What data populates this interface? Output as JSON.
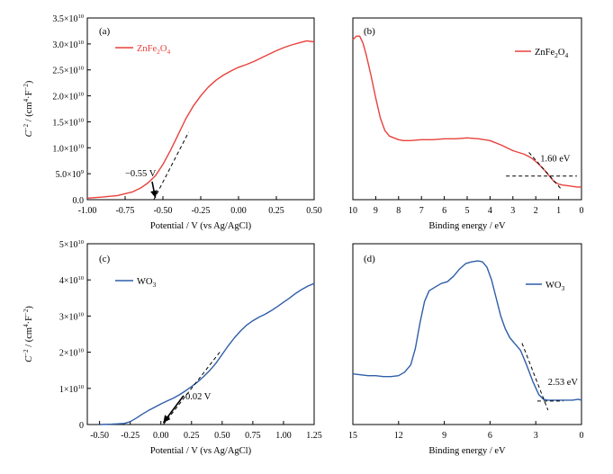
{
  "chart_data": [
    {
      "type": "line",
      "panel_label": "(a)",
      "xlabel": "Potential / V (vs Ag/AgCl)",
      "ylabel_base": "C",
      "ylabel_sup": "−2",
      "ylabel_rest": " / (cm",
      "ylabel_sup2": "4",
      "ylabel_rest2": "·F",
      "ylabel_sup3": "−2",
      "ylabel_end": ")",
      "xlim": [
        -1.0,
        0.5
      ],
      "ylim": [
        0,
        35000000000
      ],
      "xticks": [
        "-1.00",
        "-0.75",
        "-0.50",
        "-0.25",
        "0.00",
        "0.25",
        "0.50"
      ],
      "xtick_values": [
        -1.0,
        -0.75,
        -0.5,
        -0.25,
        0.0,
        0.25,
        0.5
      ],
      "yticks": [
        {
          "value": 0,
          "base": "0.0",
          "exp": ""
        },
        {
          "value": 5000000000,
          "base": "5.0×10",
          "exp": "9"
        },
        {
          "value": 10000000000,
          "base": "1.0×10",
          "exp": "10"
        },
        {
          "value": 15000000000,
          "base": "1.5×10",
          "exp": "10"
        },
        {
          "value": 20000000000,
          "base": "2.0×10",
          "exp": "10"
        },
        {
          "value": 25000000000,
          "base": "2.5×10",
          "exp": "10"
        },
        {
          "value": 30000000000,
          "base": "3.0×10",
          "exp": "10"
        },
        {
          "value": 35000000000,
          "base": "3.5×10",
          "exp": "10"
        }
      ],
      "series": [
        {
          "name": "ZnFe2O4",
          "legend_parts": [
            "ZnFe",
            "2",
            "O",
            "4"
          ],
          "color": "#e8413c",
          "x": [
            -1.0,
            -0.9,
            -0.8,
            -0.7,
            -0.65,
            -0.6,
            -0.55,
            -0.5,
            -0.45,
            -0.4,
            -0.35,
            -0.3,
            -0.25,
            -0.2,
            -0.15,
            -0.1,
            -0.05,
            0.0,
            0.05,
            0.1,
            0.15,
            0.2,
            0.25,
            0.3,
            0.35,
            0.4,
            0.45,
            0.5
          ],
          "y": [
            300000000,
            500000000,
            800000000,
            1500000000,
            2200000000,
            3200000000,
            4600000000,
            6800000000,
            9500000000,
            12500000000,
            15500000000,
            18000000000,
            20000000000,
            21700000000,
            23000000000,
            24000000000,
            24800000000,
            25500000000,
            26000000000,
            26600000000,
            27300000000,
            28000000000,
            28700000000,
            29300000000,
            29800000000,
            30200000000,
            30600000000,
            30400000000
          ]
        }
      ],
      "tangent": {
        "x": [
          -0.56,
          -0.33
        ],
        "y": [
          0,
          13000000000
        ]
      },
      "annotation": {
        "text": "−0.55 V",
        "x": -0.55,
        "y": 0,
        "label_x": -0.75,
        "label_y": 4500000000
      }
    },
    {
      "type": "line",
      "panel_label": "(b)",
      "xlabel": "Binding energy / eV",
      "xlim": [
        10,
        0
      ],
      "ylim": [
        0,
        1
      ],
      "xticks": [
        "10",
        "9",
        "8",
        "7",
        "6",
        "5",
        "4",
        "3",
        "2",
        "1",
        "0"
      ],
      "xtick_values": [
        10,
        9,
        8,
        7,
        6,
        5,
        4,
        3,
        2,
        1,
        0
      ],
      "series": [
        {
          "name": "ZnFe2O4",
          "legend_parts": [
            "ZnFe",
            "2",
            "O",
            "4"
          ],
          "color": "#e8413c",
          "x": [
            10.0,
            9.85,
            9.7,
            9.55,
            9.4,
            9.2,
            9.0,
            8.8,
            8.6,
            8.4,
            8.2,
            8.0,
            7.8,
            7.5,
            7.0,
            6.5,
            6.0,
            5.5,
            5.0,
            4.5,
            4.0,
            3.5,
            3.0,
            2.5,
            2.2,
            1.9,
            1.6,
            1.4,
            1.2,
            1.0,
            0.8,
            0.5,
            0.2,
            0.0
          ],
          "y": [
            0.88,
            0.9,
            0.9,
            0.86,
            0.79,
            0.68,
            0.56,
            0.45,
            0.38,
            0.35,
            0.34,
            0.33,
            0.325,
            0.325,
            0.33,
            0.33,
            0.335,
            0.335,
            0.34,
            0.335,
            0.325,
            0.3,
            0.27,
            0.25,
            0.23,
            0.2,
            0.16,
            0.13,
            0.1,
            0.085,
            0.08,
            0.075,
            0.07,
            0.07
          ]
        }
      ],
      "tangent": {
        "x": [
          2.3,
          0.9
        ],
        "y": [
          0.26,
          0.06
        ]
      },
      "baseline": {
        "x": [
          3.3,
          0.2
        ],
        "y": [
          0.13,
          0.13
        ]
      },
      "annotation": {
        "text": "1.60 eV",
        "x": 1.6,
        "y": 0.14,
        "label_x": 1.8,
        "label_y": 0.21
      }
    },
    {
      "type": "line",
      "panel_label": "(c)",
      "xlabel": "Potential / V (vs Ag/AgCl)",
      "ylabel_base": "C",
      "ylabel_sup": "−2",
      "ylabel_rest": " / (cm",
      "ylabel_sup2": "4",
      "ylabel_rest2": "·F",
      "ylabel_sup3": "−2",
      "ylabel_end": ")",
      "xlim": [
        -0.6,
        1.25
      ],
      "ylim": [
        0,
        50000000000
      ],
      "xticks": [
        "-0.50",
        "-0.25",
        "0.00",
        "0.25",
        "0.50",
        "0.75",
        "1.00",
        "1.25"
      ],
      "xtick_values": [
        -0.5,
        -0.25,
        0.0,
        0.25,
        0.5,
        0.75,
        1.0,
        1.25
      ],
      "yticks": [
        {
          "value": 0,
          "base": "0",
          "exp": ""
        },
        {
          "value": 10000000000,
          "base": "1×10",
          "exp": "10"
        },
        {
          "value": 20000000000,
          "base": "2×10",
          "exp": "10"
        },
        {
          "value": 30000000000,
          "base": "3×10",
          "exp": "10"
        },
        {
          "value": 40000000000,
          "base": "4×10",
          "exp": "10"
        },
        {
          "value": 50000000000,
          "base": "5×10",
          "exp": "10"
        }
      ],
      "series": [
        {
          "name": "WO3",
          "legend_parts": [
            "WO",
            "3",
            "",
            ""
          ],
          "color": "#2f5ea8",
          "x": [
            -0.5,
            -0.4,
            -0.3,
            -0.25,
            -0.2,
            -0.15,
            -0.1,
            -0.05,
            0.0,
            0.05,
            0.1,
            0.15,
            0.2,
            0.25,
            0.3,
            0.35,
            0.4,
            0.45,
            0.5,
            0.55,
            0.6,
            0.65,
            0.7,
            0.75,
            0.8,
            0.85,
            0.9,
            0.95,
            1.0,
            1.05,
            1.1,
            1.15,
            1.2,
            1.25
          ],
          "y": [
            0,
            100000000,
            300000000,
            800000000,
            1800000000,
            2900000000,
            3900000000,
            4800000000,
            5700000000,
            6500000000,
            7300000000,
            8200000000,
            9300000000,
            10500000000,
            11800000000,
            13300000000,
            15000000000,
            17000000000,
            19400000000,
            21800000000,
            24000000000,
            25900000000,
            27500000000,
            28700000000,
            29700000000,
            30500000000,
            31500000000,
            32600000000,
            33800000000,
            35000000000,
            36300000000,
            37400000000,
            38300000000,
            39000000000
          ]
        }
      ],
      "tangent": {
        "x": [
          0.02,
          0.48
        ],
        "y": [
          0,
          20000000000
        ]
      },
      "annotation": {
        "text": "0.02 V",
        "x": 0.02,
        "y": 0,
        "label_x": 0.2,
        "label_y": 7000000000
      }
    },
    {
      "type": "line",
      "panel_label": "(d)",
      "xlabel": "Binding energy / eV",
      "xlim": [
        15,
        0
      ],
      "ylim": [
        0,
        1
      ],
      "xticks": [
        "15",
        "12",
        "9",
        "6",
        "3",
        "0"
      ],
      "xtick_values": [
        15,
        12,
        9,
        6,
        3,
        0
      ],
      "series": [
        {
          "name": "WO3",
          "legend_parts": [
            "WO",
            "3",
            "",
            ""
          ],
          "color": "#2f5ea8",
          "x": [
            15.0,
            14.5,
            14.0,
            13.5,
            13.0,
            12.5,
            12.0,
            11.6,
            11.2,
            10.9,
            10.6,
            10.3,
            10.0,
            9.6,
            9.2,
            8.8,
            8.4,
            8.0,
            7.6,
            7.2,
            6.8,
            6.5,
            6.2,
            5.9,
            5.6,
            5.3,
            5.0,
            4.7,
            4.4,
            4.0,
            3.6,
            3.2,
            2.8,
            2.5,
            2.2,
            1.8,
            1.4,
            1.0,
            0.6,
            0.2,
            0.0
          ],
          "y": [
            0.28,
            0.275,
            0.27,
            0.27,
            0.265,
            0.265,
            0.27,
            0.29,
            0.33,
            0.42,
            0.56,
            0.68,
            0.74,
            0.76,
            0.78,
            0.79,
            0.82,
            0.86,
            0.89,
            0.9,
            0.905,
            0.9,
            0.87,
            0.8,
            0.7,
            0.6,
            0.53,
            0.48,
            0.45,
            0.41,
            0.33,
            0.24,
            0.165,
            0.14,
            0.135,
            0.135,
            0.135,
            0.135,
            0.135,
            0.14,
            0.135
          ]
        }
      ],
      "tangent": {
        "x": [
          3.9,
          2.2
        ],
        "y": [
          0.45,
          0.08
        ]
      },
      "baseline": {
        "x": [
          2.9,
          1.2
        ],
        "y": [
          0.13,
          0.13
        ]
      },
      "annotation": {
        "text": "2.53 eV",
        "x": 2.53,
        "y": 0.13,
        "label_x": 2.2,
        "label_y": 0.22
      }
    }
  ]
}
